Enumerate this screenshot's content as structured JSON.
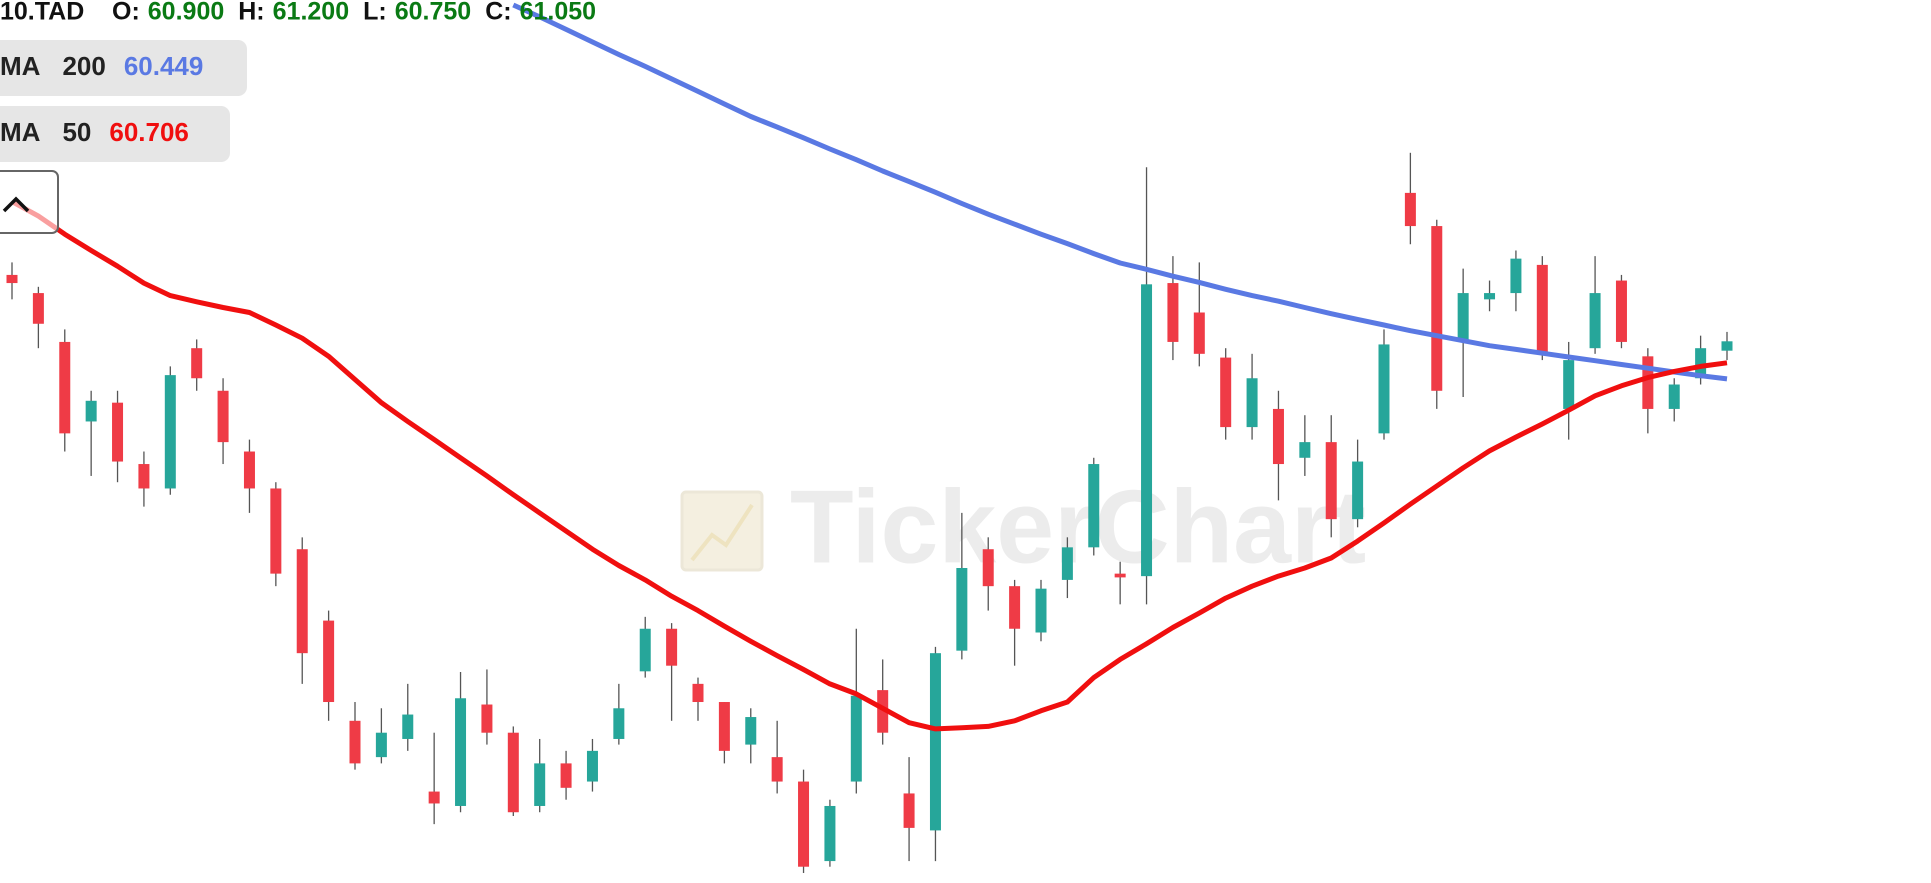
{
  "chart_data": {
    "type": "candlestick",
    "header": {
      "symbol": "10.TAD",
      "fields": [
        "O:",
        "H:",
        "L:",
        "C:"
      ],
      "value_labels": [
        "60.900",
        "61.200",
        "60.750",
        "61.050"
      ]
    },
    "watermark": "TickerChart",
    "ylim": [
      52.4,
      66.5
    ],
    "up_color": "#26a69a",
    "down_color": "#ef3b46",
    "open": [
      62.11,
      61.82,
      61.04,
      59.77,
      60.07,
      59.09,
      58.7,
      60.94,
      60.26,
      59.29,
      58.7,
      57.73,
      56.59,
      54.99,
      54.41,
      54.7,
      53.86,
      53.63,
      55.25,
      54.8,
      53.63,
      54.31,
      54.02,
      54.7,
      55.78,
      56.46,
      55.58,
      55.29,
      54.61,
      54.41,
      54.02,
      52.75,
      54.02,
      55.48,
      53.83,
      53.24,
      56.11,
      57.73,
      57.14,
      56.4,
      57.24,
      57.76,
      57.34,
      57.3,
      61.98,
      61.51,
      60.79,
      59.68,
      59.97,
      59.19,
      59.44,
      58.21,
      59.58,
      63.42,
      62.89,
      61.04,
      61.72,
      61.82,
      62.27,
      59.97,
      60.94,
      62.02,
      60.81,
      59.97,
      60.46,
      60.9
    ],
    "high": [
      62.31,
      61.92,
      61.24,
      60.26,
      60.26,
      59.29,
      60.65,
      61.08,
      60.46,
      59.48,
      58.8,
      57.92,
      56.75,
      55.29,
      55.19,
      55.58,
      54.8,
      55.77,
      55.81,
      54.9,
      54.7,
      54.51,
      54.7,
      55.58,
      56.65,
      56.55,
      55.68,
      55.29,
      55.19,
      54.99,
      54.21,
      53.73,
      56.46,
      55.97,
      54.41,
      56.17,
      58.31,
      57.92,
      57.24,
      57.24,
      57.92,
      59.19,
      57.53,
      63.83,
      62.41,
      62.31,
      60.94,
      60.85,
      60.26,
      59.87,
      59.87,
      59.48,
      61.24,
      64.06,
      62.99,
      62.21,
      62.02,
      62.5,
      62.41,
      61.04,
      62.41,
      62.11,
      60.94,
      60.46,
      61.14,
      61.2
    ],
    "low": [
      61.72,
      60.94,
      59.29,
      58.9,
      58.8,
      58.41,
      58.6,
      60.26,
      59.09,
      58.31,
      57.14,
      55.58,
      54.99,
      54.21,
      54.31,
      54.51,
      53.34,
      53.53,
      54.61,
      53.47,
      53.53,
      53.73,
      53.86,
      54.61,
      55.68,
      54.99,
      54.99,
      54.31,
      54.31,
      53.83,
      52.56,
      52.66,
      53.83,
      54.61,
      52.75,
      52.75,
      55.97,
      56.75,
      55.87,
      56.26,
      56.95,
      57.63,
      56.85,
      56.85,
      60.75,
      60.65,
      59.48,
      59.48,
      58.51,
      58.9,
      57.92,
      58.08,
      59.48,
      62.6,
      59.97,
      60.16,
      61.53,
      61.53,
      60.75,
      59.48,
      60.85,
      60.94,
      59.58,
      59.77,
      60.36,
      60.75
    ],
    "close": [
      61.98,
      61.33,
      59.58,
      60.1,
      59.13,
      58.7,
      60.51,
      60.46,
      59.44,
      58.7,
      57.34,
      56.07,
      55.29,
      54.31,
      54.8,
      55.09,
      53.67,
      55.35,
      54.8,
      53.53,
      54.31,
      53.92,
      54.51,
      55.19,
      56.46,
      55.87,
      55.29,
      54.51,
      55.05,
      54.02,
      52.66,
      53.63,
      55.39,
      54.8,
      53.28,
      56.07,
      57.43,
      57.14,
      56.46,
      57.1,
      57.76,
      59.09,
      57.28,
      61.96,
      61.04,
      60.85,
      59.68,
      60.46,
      59.09,
      59.44,
      58.21,
      59.13,
      61.0,
      62.89,
      60.26,
      61.82,
      61.82,
      62.37,
      60.85,
      60.75,
      61.82,
      61.04,
      59.97,
      60.36,
      60.94,
      61.05
    ],
    "overlays": [
      {
        "name": "MA",
        "period": 200,
        "color": "#5a79e3",
        "values": [
          null,
          null,
          null,
          null,
          null,
          null,
          null,
          null,
          null,
          null,
          null,
          null,
          null,
          null,
          null,
          null,
          null,
          null,
          null,
          66.42,
          66.23,
          66.03,
          65.83,
          65.63,
          65.44,
          65.24,
          65.04,
          64.84,
          64.64,
          64.47,
          64.3,
          64.12,
          63.95,
          63.77,
          63.6,
          63.43,
          63.25,
          63.08,
          62.92,
          62.76,
          62.61,
          62.45,
          62.3,
          62.2,
          62.09,
          61.99,
          61.88,
          61.78,
          61.69,
          61.59,
          61.49,
          61.4,
          61.31,
          61.22,
          61.14,
          61.06,
          60.98,
          60.92,
          60.86,
          60.8,
          60.74,
          60.68,
          60.62,
          60.56,
          60.5,
          60.449
        ]
      },
      {
        "name": "MA",
        "period": 50,
        "color": "#f00f0f",
        "values": [
          63.28,
          63.05,
          62.76,
          62.5,
          62.25,
          61.98,
          61.78,
          61.68,
          61.59,
          61.51,
          61.31,
          61.1,
          60.81,
          60.44,
          60.07,
          59.77,
          59.48,
          59.19,
          58.9,
          58.6,
          58.31,
          58.02,
          57.73,
          57.47,
          57.24,
          56.98,
          56.75,
          56.5,
          56.26,
          56.03,
          55.81,
          55.58,
          55.42,
          55.19,
          54.96,
          54.86,
          54.88,
          54.9,
          54.99,
          55.15,
          55.29,
          55.68,
          55.97,
          56.22,
          56.48,
          56.71,
          56.95,
          57.14,
          57.3,
          57.43,
          57.59,
          57.86,
          58.15,
          58.45,
          58.74,
          59.03,
          59.3,
          59.52,
          59.73,
          59.95,
          60.18,
          60.34,
          60.47,
          60.57,
          60.65,
          60.706
        ]
      }
    ]
  }
}
